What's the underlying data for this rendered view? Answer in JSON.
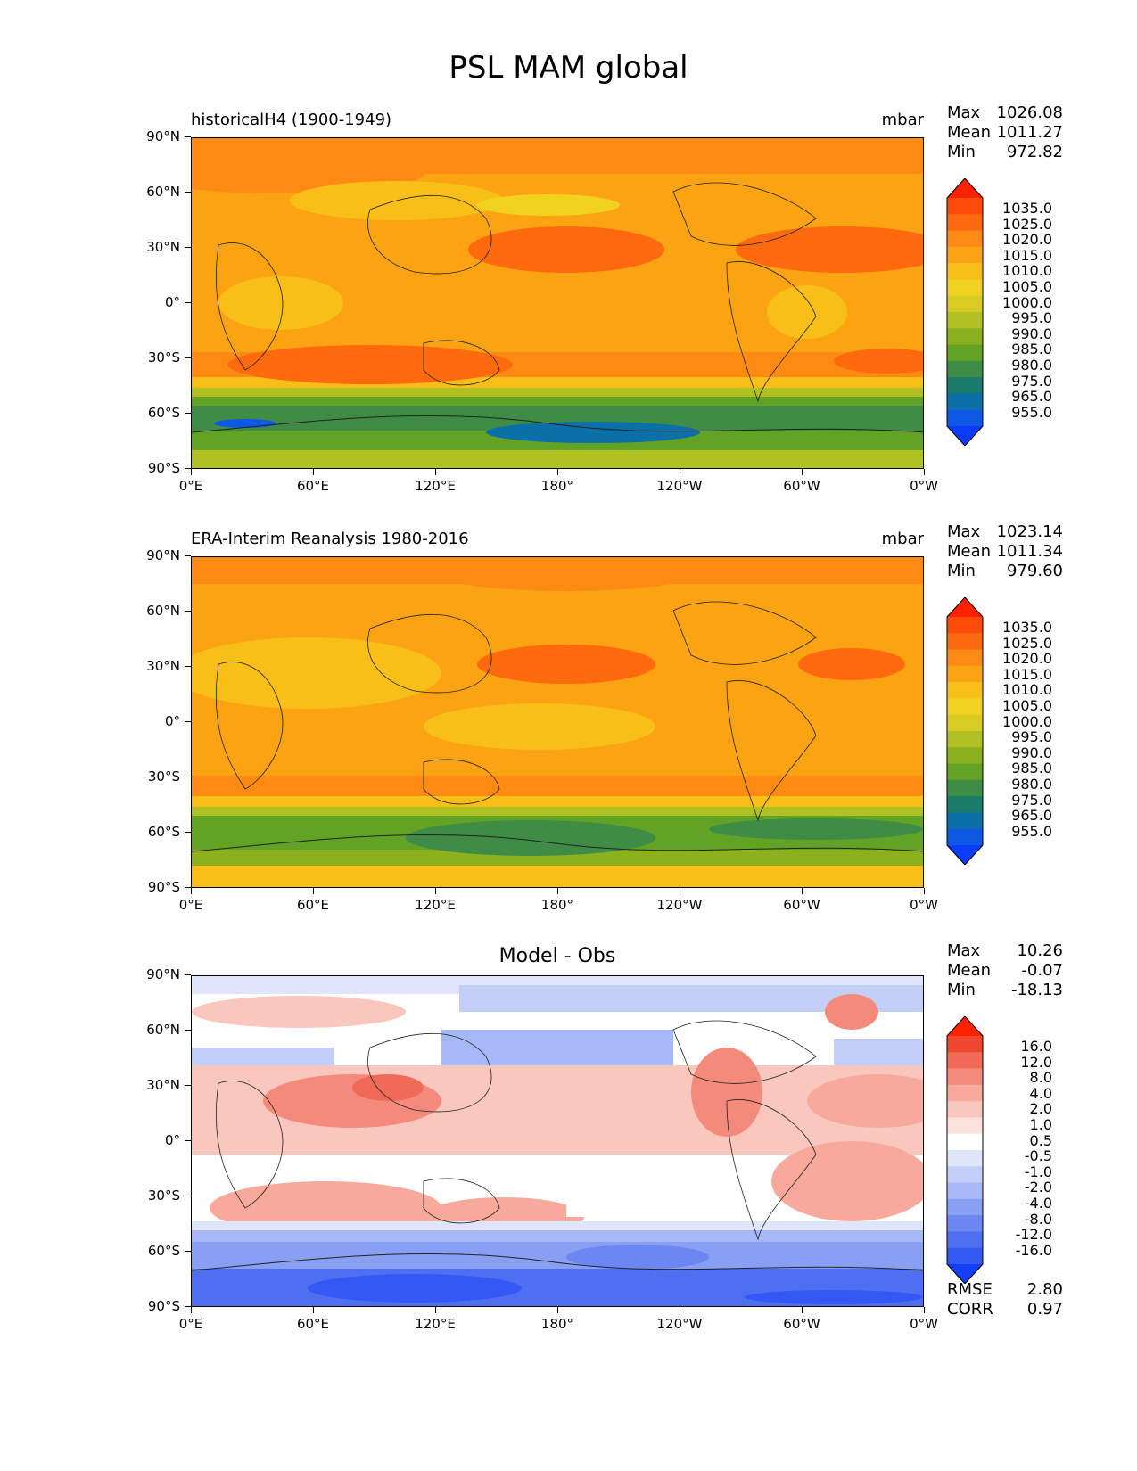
{
  "figure_title": "PSL MAM global",
  "y_ticks": [
    "90°N",
    "60°N",
    "30°N",
    "0°",
    "30°S",
    "60°S",
    "90°S"
  ],
  "x_ticks": [
    "0°E",
    "60°E",
    "120°E",
    "180°",
    "120°W",
    "60°W",
    "0°W"
  ],
  "panels": [
    {
      "title": "historicalH4 (1900-1949)",
      "units": "mbar",
      "stats": {
        "max_label": "Max",
        "max": "1026.08",
        "mean_label": "Mean",
        "mean": "1011.27",
        "min_label": "Min",
        "min": "972.82"
      },
      "colorbar_labels": [
        "1035.0",
        "1025.0",
        "1020.0",
        "1015.0",
        "1010.0",
        "1005.0",
        "1000.0",
        "995.0",
        "990.0",
        "985.0",
        "980.0",
        "975.0",
        "965.0",
        "955.0"
      ],
      "colorbar_colors": [
        "#ff2200",
        "#ff4b0a",
        "#ff6a0f",
        "#fd8a12",
        "#fba313",
        "#f8bf18",
        "#f1d21f",
        "#d8cc23",
        "#b1c023",
        "#8cb11e",
        "#62a225",
        "#3e8c45",
        "#197c6b",
        "#0b6fa8",
        "#0d59e5",
        "#0b3cfb"
      ]
    },
    {
      "title": "ERA-Interim Reanalysis 1980-2016",
      "units": "mbar",
      "stats": {
        "max_label": "Max",
        "max": "1023.14",
        "mean_label": "Mean",
        "mean": "1011.34",
        "min_label": "Min",
        "min": "979.60"
      },
      "colorbar_labels": [
        "1035.0",
        "1025.0",
        "1020.0",
        "1015.0",
        "1010.0",
        "1005.0",
        "1000.0",
        "995.0",
        "990.0",
        "985.0",
        "980.0",
        "975.0",
        "965.0",
        "955.0"
      ],
      "colorbar_colors": [
        "#ff2200",
        "#ff4b0a",
        "#ff6a0f",
        "#fd8a12",
        "#fba313",
        "#f8bf18",
        "#f1d21f",
        "#d8cc23",
        "#b1c023",
        "#8cb11e",
        "#62a225",
        "#3e8c45",
        "#197c6b",
        "#0b6fa8",
        "#0d59e5",
        "#0b3cfb"
      ]
    },
    {
      "title": "Model - Obs",
      "units": "",
      "stats": {
        "max_label": "Max",
        "max": "10.26",
        "mean_label": "Mean",
        "mean": "-0.07",
        "min_label": "Min",
        "min": "-18.13"
      },
      "colorbar_labels": [
        "16.0",
        "12.0",
        "8.0",
        "4.0",
        "2.0",
        "1.0",
        "0.5",
        "-0.5",
        "-1.0",
        "-2.0",
        "-4.0",
        "-8.0",
        "-12.0",
        "-16.0"
      ],
      "colorbar_colors": [
        "#ff2200",
        "#f2472f",
        "#f16a58",
        "#f48a7c",
        "#f7a99c",
        "#f9c7bd",
        "#fce2dc",
        "#ffffff",
        "#dfe5fb",
        "#c3cff8",
        "#a6b8f5",
        "#889ff3",
        "#6c87f2",
        "#4f6ff1",
        "#3458f4",
        "#163ef8"
      ],
      "rmse_label": "RMSE",
      "rmse": "2.80",
      "corr_label": "CORR",
      "corr": "0.97"
    }
  ]
}
